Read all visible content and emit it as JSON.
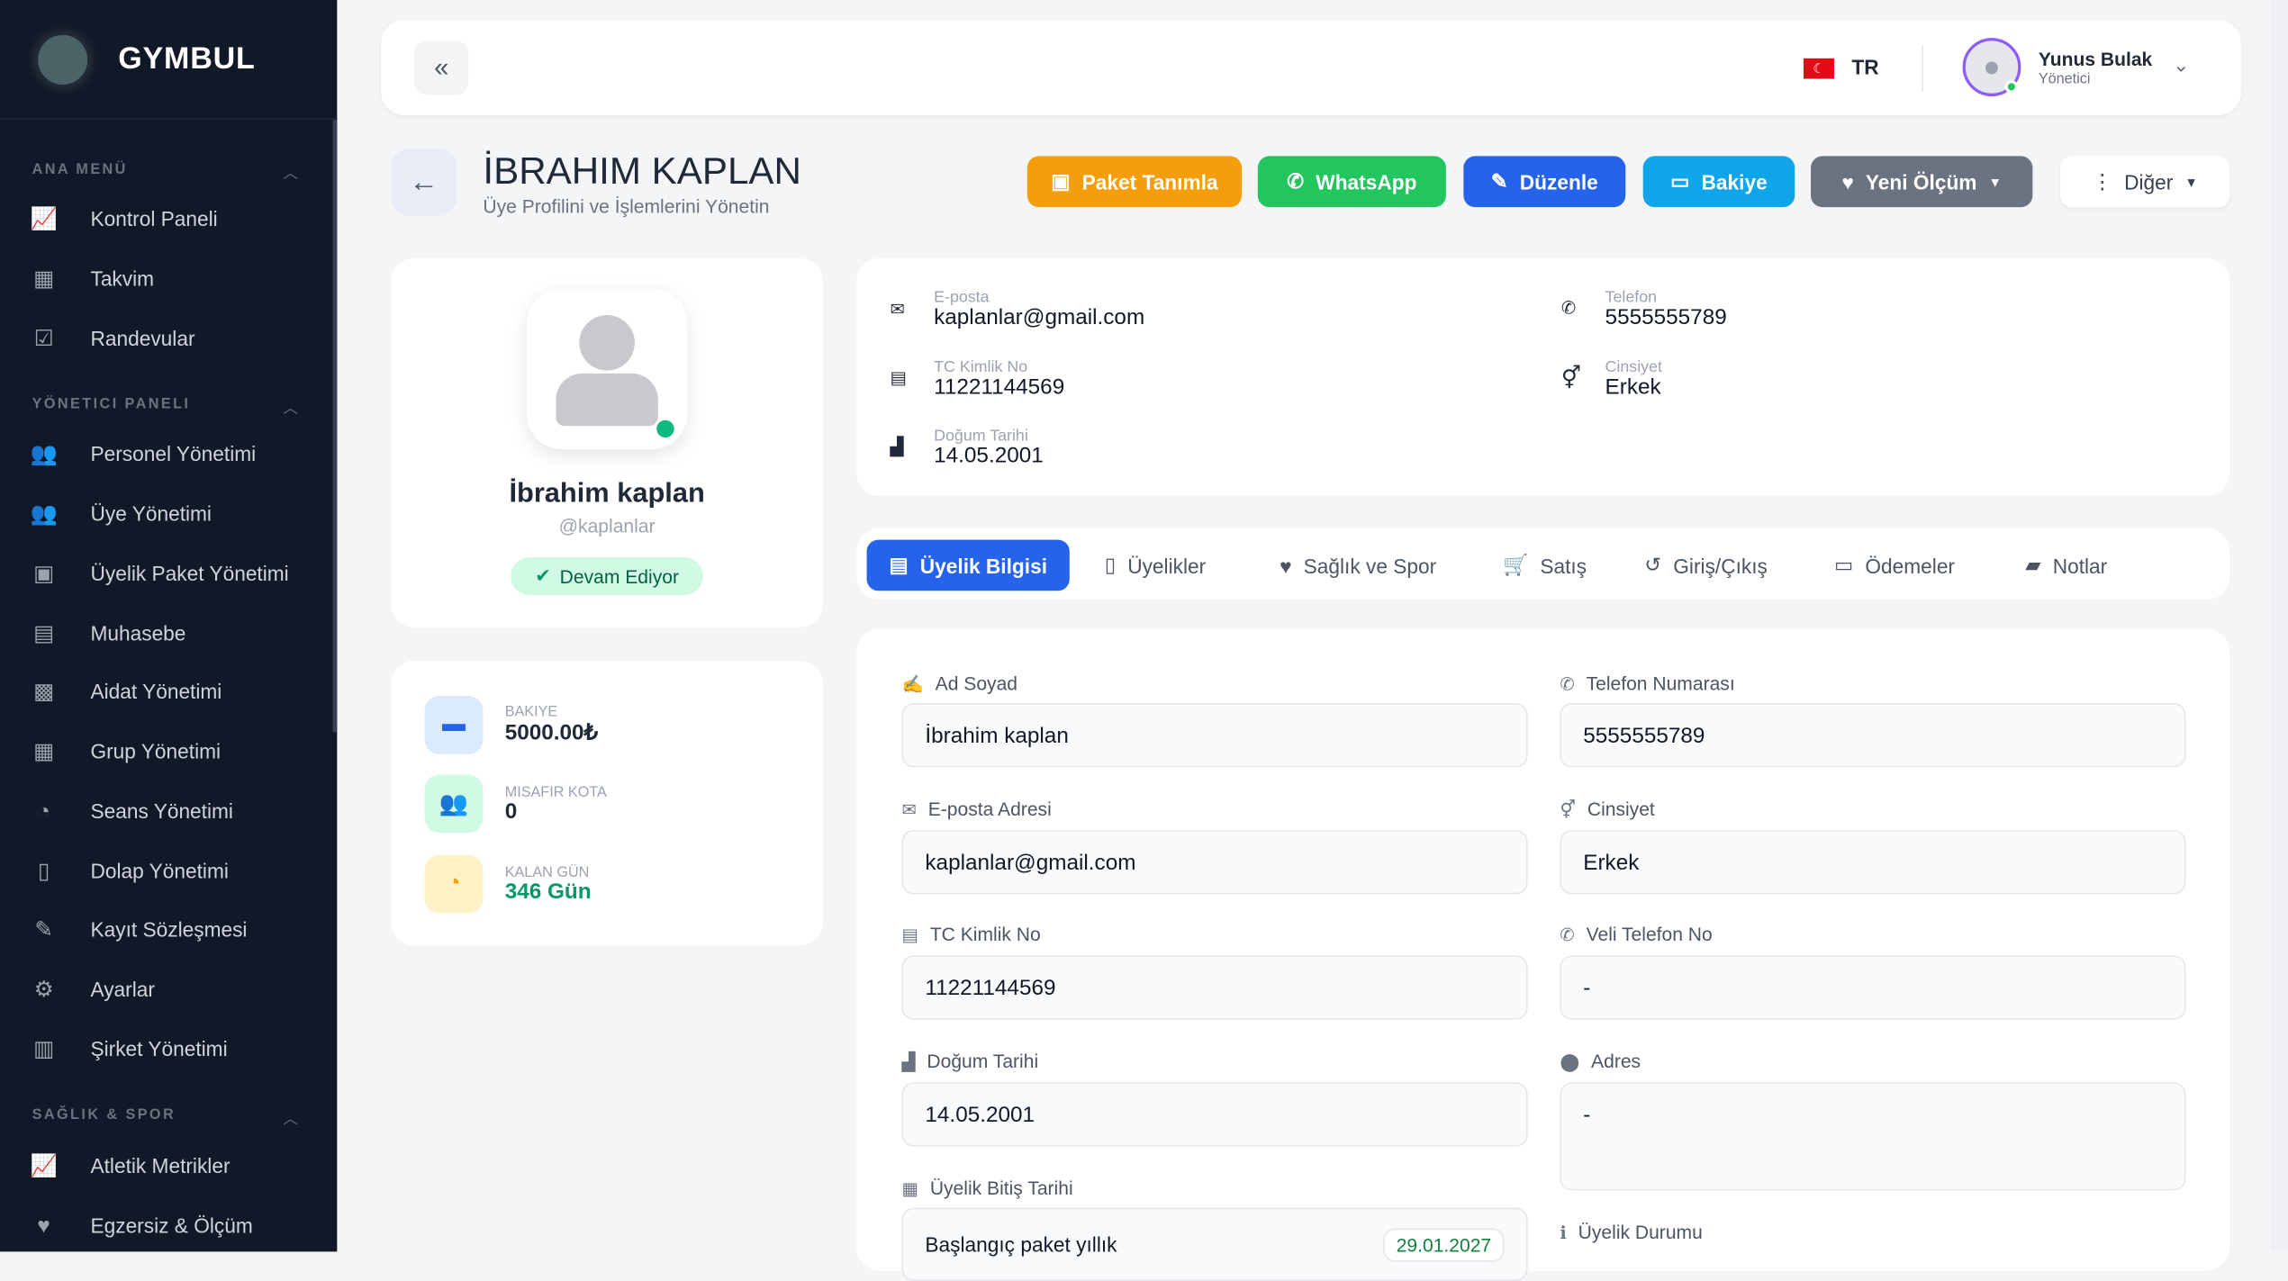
{
  "brand": "GYMBUL",
  "sidebar": {
    "sections": [
      {
        "title": "ANA MENÜ",
        "items": [
          {
            "label": "Kontrol Paneli",
            "icon": "chart-line-icon"
          },
          {
            "label": "Takvim",
            "icon": "calendar-icon"
          },
          {
            "label": "Randevular",
            "icon": "calendar-check-icon"
          }
        ]
      },
      {
        "title": "YÖNETICI PANELI",
        "items": [
          {
            "label": "Personel Yönetimi",
            "icon": "users-cog-icon"
          },
          {
            "label": "Üye Yönetimi",
            "icon": "users-icon"
          },
          {
            "label": "Üyelik Paket Yönetimi",
            "icon": "id-badge-icon"
          },
          {
            "label": "Muhasebe",
            "icon": "calculator-icon"
          },
          {
            "label": "Aidat Yönetimi",
            "icon": "money-icon"
          },
          {
            "label": "Grup Yönetimi",
            "icon": "group-icon"
          },
          {
            "label": "Seans Yönetimi",
            "icon": "clock-icon"
          },
          {
            "label": "Dolap Yönetimi",
            "icon": "door-icon"
          },
          {
            "label": "Kayıt Sözleşmesi",
            "icon": "file-signature-icon"
          },
          {
            "label": "Ayarlar",
            "icon": "gear-icon"
          },
          {
            "label": "Şirket Yönetimi",
            "icon": "building-icon"
          }
        ]
      },
      {
        "title": "SAĞLIK & SPOR",
        "items": [
          {
            "label": "Atletik Metrikler",
            "icon": "chart-line-icon"
          },
          {
            "label": "Egzersiz & Ölçüm",
            "icon": "heart-pulse-icon"
          }
        ]
      }
    ]
  },
  "topbar": {
    "lang": "TR",
    "user_name": "Yunus Bulak",
    "user_role": "Yönetici"
  },
  "header": {
    "title": "İBRAHIM KAPLAN",
    "subtitle": "Üye Profilini ve İşlemlerini Yönetin"
  },
  "actions": [
    {
      "label": "Paket Tanımla",
      "color": "#f59e0b"
    },
    {
      "label": "WhatsApp",
      "color": "#22c55e"
    },
    {
      "label": "Düzenle",
      "color": "#2563eb"
    },
    {
      "label": "Bakiye",
      "color": "#0ea5e9"
    },
    {
      "label": "Yeni Ölçüm",
      "color": "#6b7280"
    },
    {
      "label": "Diğer",
      "color": "#ffffff"
    }
  ],
  "profile": {
    "name": "İbrahim kaplan",
    "username": "@kaplanlar",
    "status": "Devam Ediyor"
  },
  "stats": [
    {
      "label": "BAKIYE",
      "value": "5000.00₺"
    },
    {
      "label": "MISAFIR KOTA",
      "value": "0"
    },
    {
      "label": "KALAN GÜN",
      "value": "346 Gün"
    }
  ],
  "info": [
    {
      "label": "E-posta",
      "value": "kaplanlar@gmail.com"
    },
    {
      "label": "Telefon",
      "value": "5555555789"
    },
    {
      "label": "TC Kimlik No",
      "value": "11221144569"
    },
    {
      "label": "Cinsiyet",
      "value": "Erkek"
    },
    {
      "label": "Doğum Tarihi",
      "value": "14.05.2001"
    }
  ],
  "tabs": [
    "Üyelik Bilgisi",
    "Üyelikler",
    "Sağlık ve Spor",
    "Satış",
    "Giriş/Çıkış",
    "Ödemeler",
    "Notlar"
  ],
  "form": {
    "ad_soyad": {
      "label": "Ad Soyad",
      "value": "İbrahim kaplan"
    },
    "telefon": {
      "label": "Telefon Numarası",
      "value": "5555555789"
    },
    "eposta": {
      "label": "E-posta Adresi",
      "value": "kaplanlar@gmail.com"
    },
    "cinsiyet": {
      "label": "Cinsiyet",
      "value": "Erkek"
    },
    "tc": {
      "label": "TC Kimlik No",
      "value": "11221144569"
    },
    "veli": {
      "label": "Veli Telefon No",
      "value": "-"
    },
    "dogum": {
      "label": "Doğum Tarihi",
      "value": "14.05.2001"
    },
    "adres": {
      "label": "Adres",
      "value": "-"
    },
    "bitis": {
      "label": "Üyelik Bitiş Tarihi",
      "package": "Başlangıç paket yıllık",
      "date": "29.01.2027"
    },
    "durum": {
      "label": "Üyelik Durumu"
    }
  }
}
